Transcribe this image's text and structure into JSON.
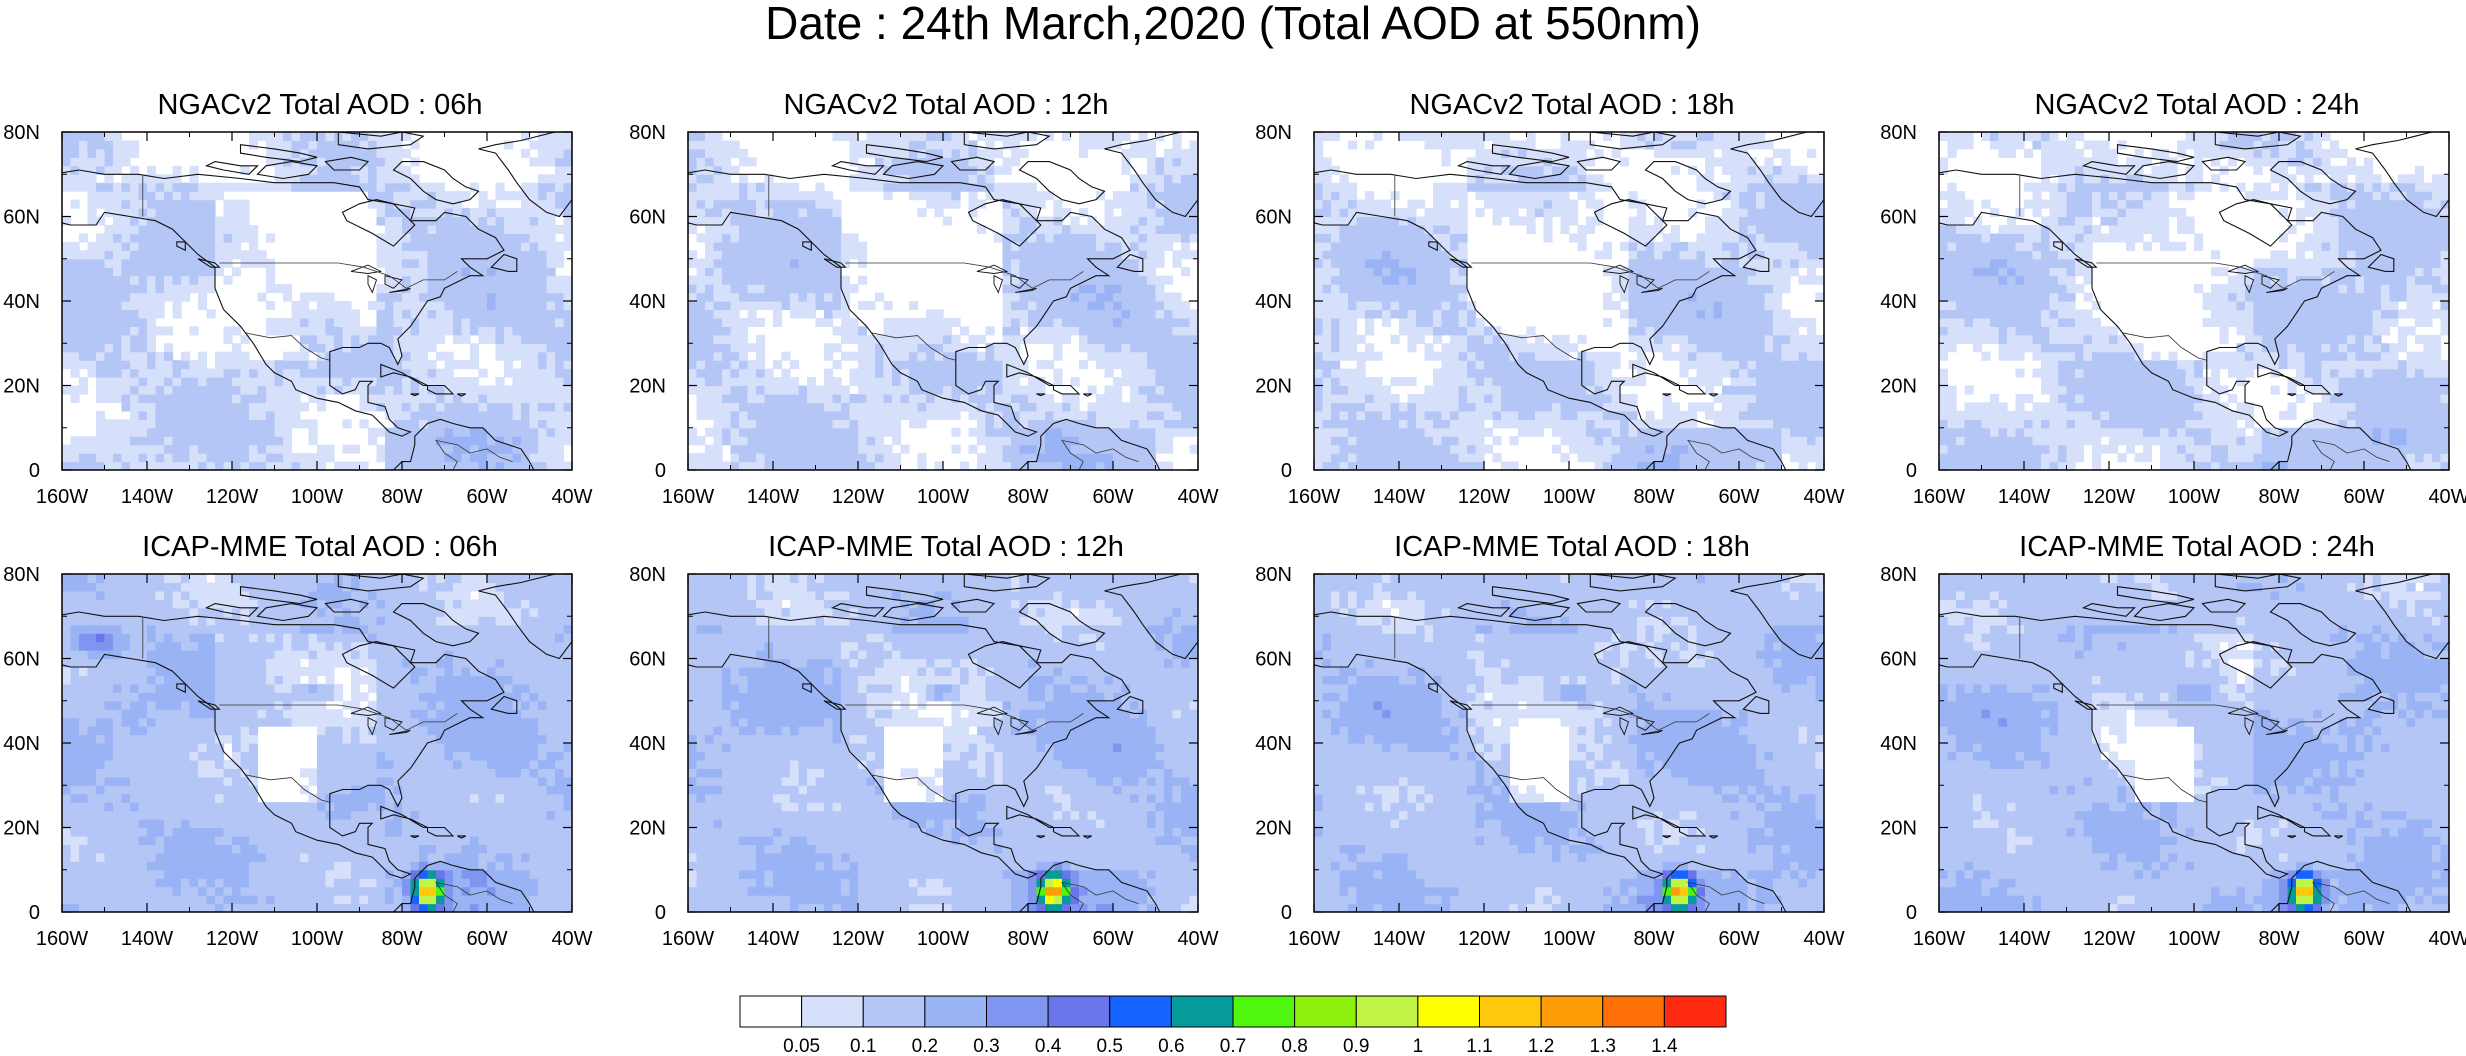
{
  "title": "Date : 24th March,2020 (Total AOD at 550nm)",
  "axes": {
    "lon_ticks": [
      "160W",
      "140W",
      "120W",
      "100W",
      "80W",
      "60W",
      "40W"
    ],
    "lat_ticks": [
      "0",
      "20N",
      "40N",
      "60N",
      "80N"
    ]
  },
  "colors": {
    "background_low": "#ffffff",
    "aod_levels": [
      "#ffffff",
      "#d6e0fb",
      "#b4c6f6",
      "#99b3f5",
      "#7f95ef",
      "#6b75eb",
      "#1664ff",
      "#079a9a",
      "#4ef70d",
      "#8ff20e",
      "#c0f547",
      "#ffff00",
      "#ffc80c",
      "#ff9d08",
      "#ff7007",
      "#ff2a10"
    ],
    "coastline": "#111111"
  },
  "panels": [
    {
      "id": "ngac-06",
      "title": "NGACv2 Total AOD : 06h",
      "model": "ngac",
      "hour": 6
    },
    {
      "id": "ngac-12",
      "title": "NGACv2 Total AOD : 12h",
      "model": "ngac",
      "hour": 12
    },
    {
      "id": "ngac-18",
      "title": "NGACv2 Total AOD : 18h",
      "model": "ngac",
      "hour": 18
    },
    {
      "id": "ngac-24",
      "title": "NGACv2 Total AOD : 24h",
      "model": "ngac",
      "hour": 24
    },
    {
      "id": "icap-06",
      "title": "ICAP-MME Total AOD : 06h",
      "model": "icap",
      "hour": 6
    },
    {
      "id": "icap-12",
      "title": "ICAP-MME Total AOD : 12h",
      "model": "icap",
      "hour": 12
    },
    {
      "id": "icap-18",
      "title": "ICAP-MME Total AOD : 18h",
      "model": "icap",
      "hour": 18
    },
    {
      "id": "icap-24",
      "title": "ICAP-MME Total AOD : 24h",
      "model": "icap",
      "hour": 24
    }
  ],
  "colorbar": {
    "labels": [
      "0.05",
      "0.1",
      "0.2",
      "0.3",
      "0.4",
      "0.5",
      "0.6",
      "0.7",
      "0.8",
      "0.9",
      "1",
      "1.1",
      "1.2",
      "1.3",
      "1.4"
    ]
  }
}
